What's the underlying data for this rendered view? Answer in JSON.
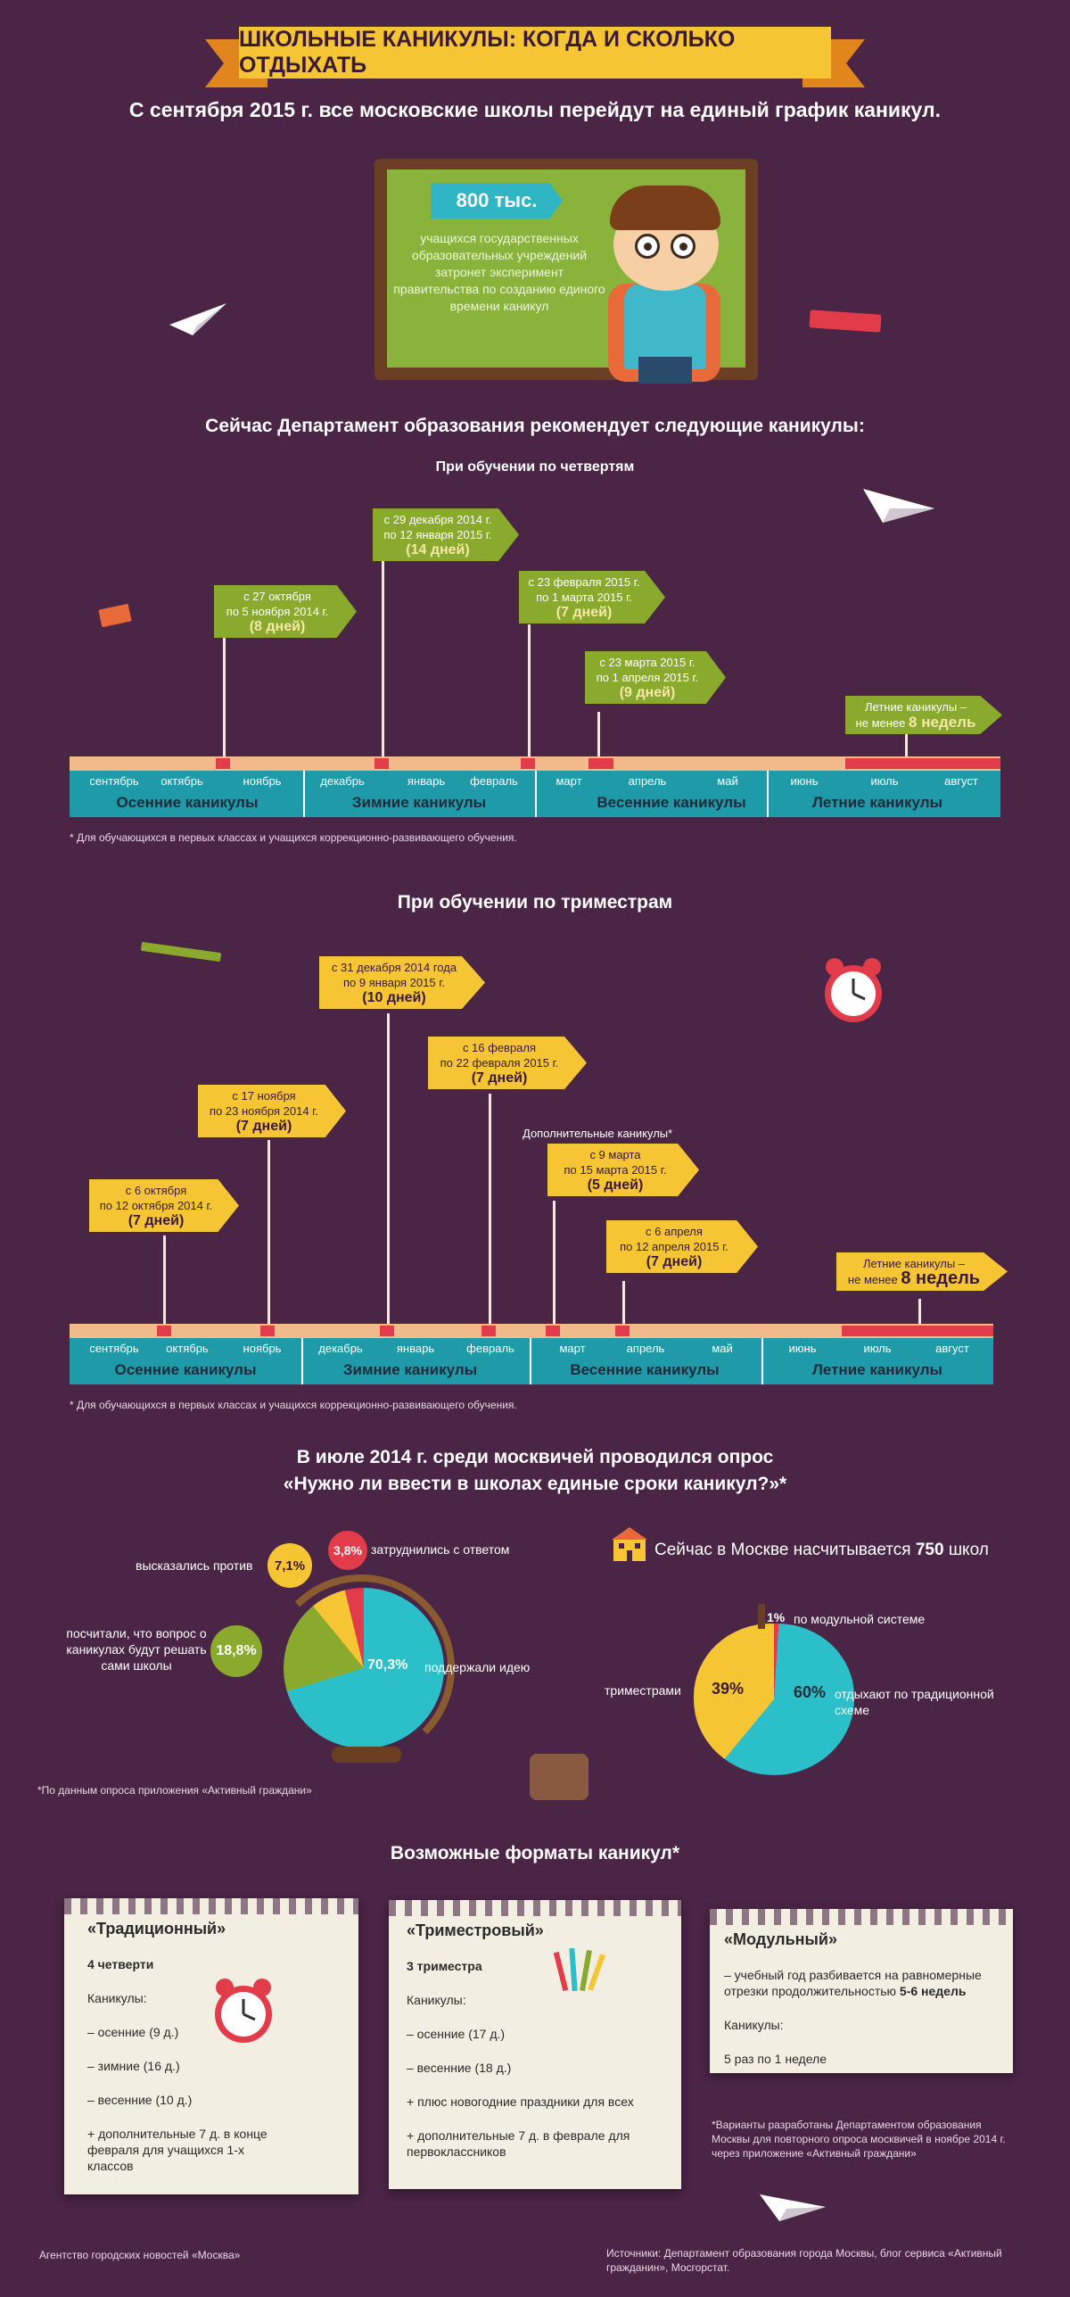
{
  "title": "ШКОЛЬНЫЕ КАНИКУЛЫ: КОГДА И СКОЛЬКО ОТДЫХАТЬ",
  "subtitle": "С сентября 2015 г. все московские школы перейдут на единый график каникул.",
  "board": {
    "badge": "800 тыс.",
    "text": "учащихся государственных образовательных учреждений затронет эксперимент правительства по созданию единого времени каникул"
  },
  "recommend_heading": "Сейчас Департамент образования рекомендует следующие каникулы:",
  "quarters": {
    "heading": "При обучении по четвертям",
    "flags": [
      {
        "from": "с 27 октября",
        "to": "по 5 ноября 2014 г.",
        "days": "(8 дней)"
      },
      {
        "from": "с 29 декабря 2014 г.",
        "to": "по 12 января 2015 г.",
        "days": "(14 дней)"
      },
      {
        "from": "с 23 февраля 2015 г.",
        "to": "по 1 марта 2015 г.",
        "days": "(7 дней)"
      },
      {
        "from": "с 23 марта 2015 г.",
        "to": "по 1 апреля 2015 г.",
        "days": "(9 дней)"
      }
    ],
    "summer": {
      "line1": "Летние каникулы –",
      "line2": "не менее",
      "weeks": "8 недель"
    },
    "note": "* Для обучающихся в первых классах и учащихся коррекционно-развивающего обучения."
  },
  "months": [
    "сентябрь",
    "октябрь",
    "ноябрь",
    "декабрь",
    "январь",
    "февраль",
    "март",
    "апрель",
    "май",
    "июнь",
    "июль",
    "август"
  ],
  "seasons": [
    "Осенние каникулы",
    "Зимние каникулы",
    "Весенние каникулы",
    "Летние каникулы"
  ],
  "trimesters": {
    "heading": "При обучении по триместрам",
    "flags": [
      {
        "from": "с 6 октября",
        "to": "по 12 октября 2014 г.",
        "days": "(7 дней)"
      },
      {
        "from": "с 17 ноября",
        "to": "по 23 ноября 2014 г.",
        "days": "(7 дней)"
      },
      {
        "from": "с 31 декабря 2014 года",
        "to": "по 9 января 2015 г.",
        "days": "(10 дней)"
      },
      {
        "from": "с 16 февраля",
        "to": "по 22 февраля 2015 г.",
        "days": "(7 дней)"
      },
      {
        "from": "с 9 марта",
        "to": "по 15 марта 2015 г.",
        "days": "(5 дней)"
      },
      {
        "from": "с 6 апреля",
        "to": "по 12 апреля 2015 г.",
        "days": "(7 дней)"
      }
    ],
    "extra_label": "Дополнительные каникулы*",
    "summer": {
      "line1": "Летние каникулы –",
      "line2": "не менее",
      "weeks": "8 недель"
    },
    "note": "* Для обучающихся в первых классах и учащихся коррекционно-развивающего обучения."
  },
  "survey": {
    "heading1": "В июле 2014 г. среди москвичей проводился опрос",
    "heading2": "«Нужно ли ввести в школах единые сроки каникул?»*",
    "items": [
      {
        "value": "70,3%",
        "label": "поддержали идею"
      },
      {
        "value": "18,8%",
        "label": "посчитали, что вопрос о каникулах будут решать сами школы"
      },
      {
        "value": "7,1%",
        "label": "высказались против"
      },
      {
        "value": "3,8%",
        "label": "затруднились с ответом"
      }
    ],
    "note": "*По данным опроса приложения «Активный граждани»"
  },
  "schools": {
    "text": "Сейчас в Москве насчитывается",
    "count": "750",
    "unit": "школ",
    "items": [
      {
        "value": "60%",
        "label": "отдыхают по традиционной схеме"
      },
      {
        "value": "39%",
        "label": "триместрами"
      },
      {
        "value": "1%",
        "label": "по модульной системе"
      }
    ]
  },
  "formats": {
    "heading": "Возможные форматы каникул*",
    "traditional": {
      "title": "«Традиционный»",
      "sub": "4 четверти",
      "holidays": "Каникулы:",
      "lines": [
        "– осенние (9 д.)",
        "– зимние (16 д.)",
        "–  весенние (10 д.)",
        "+ дополнительные 7 д. в конце февраля для учащихся 1-х классов"
      ]
    },
    "trimester": {
      "title": "«Триместровый»",
      "sub": "3 триместра",
      "holidays": "Каникулы:",
      "lines": [
        "– осенние (17 д.)",
        "– весенние (18 д.)",
        "+ плюс новогодние праздники для всех",
        "+ дополнительные 7 д. в феврале для первоклассников"
      ]
    },
    "modular": {
      "title": "«Модульный»",
      "desc": "– учебный год разбивается на равномерные отрезки продолжительностью",
      "desc_bold": "5-6 недель",
      "holidays": "Каникулы:",
      "line": "5 раз по 1 неделе"
    },
    "note": "*Варианты разработаны Департаментом образования Москвы для повторного опроса москвичей в ноябре 2014 г. через приложение «Активный граждани»"
  },
  "footer": {
    "left": "Агентство городских новостей «Москва»",
    "right": "Источники: Департамент образования города Москвы, блог сервиса «Активный гражданин», Мосгорстат."
  },
  "colors": {
    "background": "#4a2545",
    "accent_yellow": "#f6c533",
    "accent_green": "#8aaa2e",
    "accent_teal": "#1e9aa9",
    "accent_red": "#e23b4a"
  }
}
